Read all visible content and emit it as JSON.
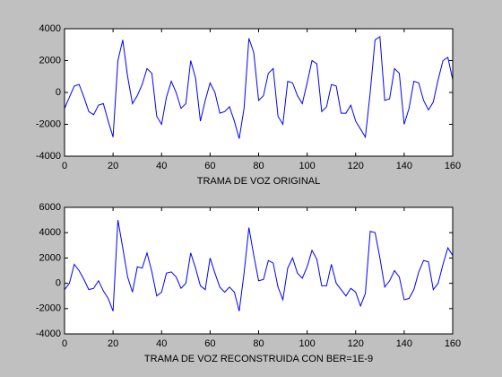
{
  "chart_data": [
    {
      "type": "line",
      "xlabel": "TRAMA DE VOZ ORIGINAL",
      "x": [
        0,
        2,
        4,
        6,
        8,
        10,
        12,
        14,
        16,
        18,
        20,
        22,
        24,
        26,
        28,
        30,
        32,
        34,
        36,
        38,
        40,
        42,
        44,
        46,
        48,
        50,
        52,
        54,
        56,
        58,
        60,
        62,
        64,
        66,
        68,
        70,
        72,
        74,
        76,
        78,
        80,
        82,
        84,
        86,
        88,
        90,
        92,
        94,
        96,
        98,
        100,
        102,
        104,
        106,
        108,
        110,
        112,
        114,
        116,
        118,
        120,
        122,
        124,
        126,
        128,
        130,
        132,
        134,
        136,
        138,
        140,
        142,
        144,
        146,
        148,
        150,
        152,
        154,
        156,
        158,
        160
      ],
      "series": [
        {
          "name": null,
          "color": "#0000ff",
          "values": [
            -1000,
            -300,
            400,
            500,
            -300,
            -1200,
            -1400,
            -800,
            -700,
            -1800,
            -2800,
            2000,
            3300,
            1000,
            -700,
            -200,
            500,
            1500,
            1200,
            -1500,
            -2000,
            -300,
            700,
            0,
            -1000,
            -700,
            2000,
            900,
            -1800,
            -500,
            600,
            0,
            -1300,
            -1200,
            -900,
            -1800,
            -2900,
            -1000,
            3400,
            2500,
            -500,
            -200,
            1200,
            1500,
            -1500,
            -2000,
            700,
            600,
            -200,
            -700,
            600,
            2000,
            1800,
            -1200,
            -900,
            500,
            400,
            -1300,
            -1300,
            -800,
            -1800,
            -2300,
            -2800,
            0,
            3300,
            3500,
            -500,
            -400,
            1500,
            1200,
            -2000,
            -1000,
            700,
            600,
            -500,
            -1100,
            -600,
            800,
            2000,
            2200,
            800
          ]
        }
      ],
      "xlim": [
        0,
        160
      ],
      "xticks": [
        0,
        20,
        40,
        60,
        80,
        100,
        120,
        140,
        160
      ],
      "ylim": [
        -4000,
        4000
      ],
      "yticks": [
        -4000,
        -2000,
        0,
        2000,
        4000
      ]
    },
    {
      "type": "line",
      "xlabel": "TRAMA DE VOZ RECONSTRUIDA CON BER=1E-9",
      "x": [
        0,
        2,
        4,
        6,
        8,
        10,
        12,
        14,
        16,
        18,
        20,
        22,
        24,
        26,
        28,
        30,
        32,
        34,
        36,
        38,
        40,
        42,
        44,
        46,
        48,
        50,
        52,
        54,
        56,
        58,
        60,
        62,
        64,
        66,
        68,
        70,
        72,
        74,
        76,
        78,
        80,
        82,
        84,
        86,
        88,
        90,
        92,
        94,
        96,
        98,
        100,
        102,
        104,
        106,
        108,
        110,
        112,
        114,
        116,
        118,
        120,
        122,
        124,
        126,
        128,
        130,
        132,
        134,
        136,
        138,
        140,
        142,
        144,
        146,
        148,
        150,
        152,
        154,
        156,
        158,
        160
      ],
      "series": [
        {
          "name": null,
          "color": "#0000ff",
          "values": [
            -500,
            0,
            1500,
            1000,
            300,
            -500,
            -400,
            200,
            -600,
            -1200,
            -2200,
            5000,
            2800,
            500,
            -700,
            1300,
            1200,
            2400,
            900,
            -1000,
            -700,
            800,
            900,
            500,
            -400,
            0,
            2400,
            1200,
            -200,
            -500,
            2000,
            800,
            -300,
            -700,
            -300,
            -700,
            -2200,
            800,
            4400,
            2200,
            200,
            300,
            1800,
            1600,
            -300,
            -1300,
            1200,
            2000,
            800,
            400,
            1300,
            2600,
            1900,
            -200,
            -200,
            1500,
            0,
            -500,
            -1000,
            -400,
            -700,
            -1800,
            -800,
            4100,
            4000,
            2000,
            -300,
            200,
            1000,
            500,
            -1300,
            -1200,
            -500,
            900,
            1800,
            1700,
            -500,
            0,
            1500,
            2800,
            2200
          ]
        }
      ],
      "xlim": [
        0,
        160
      ],
      "xticks": [
        0,
        20,
        40,
        60,
        80,
        100,
        120,
        140,
        160
      ],
      "ylim": [
        -4000,
        6000
      ],
      "yticks": [
        -4000,
        -2000,
        0,
        2000,
        4000,
        6000
      ]
    }
  ]
}
